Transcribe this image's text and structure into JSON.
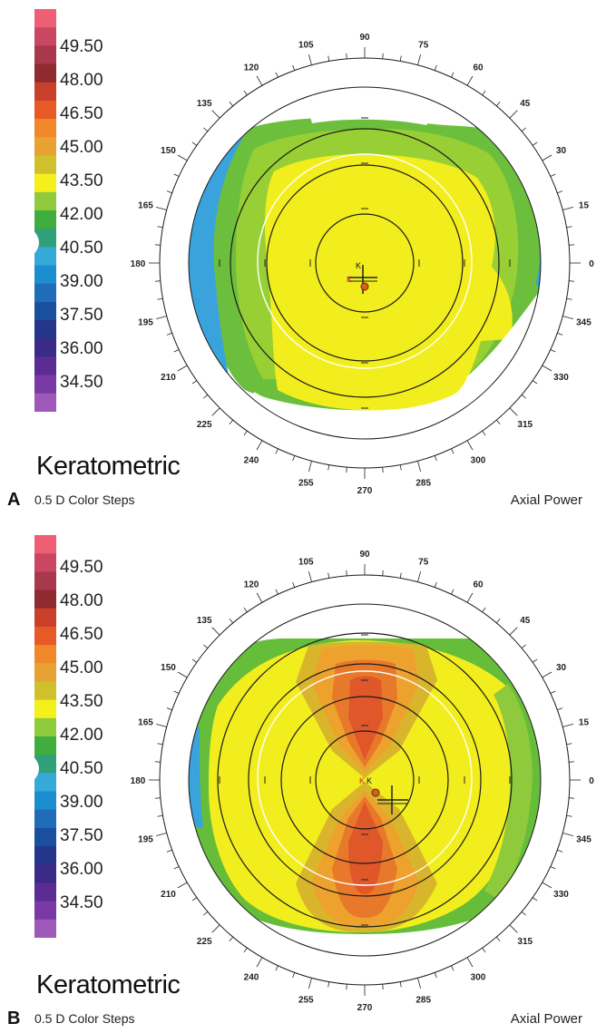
{
  "panels": [
    {
      "letter": "A",
      "title": "Keratometric",
      "color_steps": "0.5 D Color Steps",
      "map_type": "Axial Power",
      "scale_labels": [
        "49.50",
        "48.00",
        "46.50",
        "45.00",
        "43.50",
        "42.00",
        "40.50",
        "39.00",
        "37.50",
        "36.00",
        "34.50"
      ],
      "marker_position": 0.58
    },
    {
      "letter": "B",
      "title": "Keratometric",
      "color_steps": "0.5 D Color Steps",
      "map_type": "Axial Power",
      "scale_labels": [
        "49.50",
        "48.00",
        "46.50",
        "45.00",
        "43.50",
        "42.00",
        "40.50",
        "39.00",
        "37.50",
        "36.00",
        "34.50"
      ],
      "marker_position": 0.58
    }
  ],
  "axis_degrees": [
    "90",
    "75",
    "60",
    "45",
    "30",
    "15",
    "0",
    "345",
    "330",
    "315",
    "300",
    "285",
    "270",
    "255",
    "240",
    "225",
    "210",
    "195",
    "180",
    "165",
    "150",
    "135",
    "120",
    "105"
  ],
  "colors": {
    "scale": [
      "#ee5f76",
      "#c94763",
      "#a8384c",
      "#8f2a30",
      "#c8402a",
      "#e85a25",
      "#f0872a",
      "#e8a234",
      "#cfc12c",
      "#f4f01c",
      "#8fca3c",
      "#3fae3f",
      "#2fa07a",
      "#36a9d9",
      "#1b8ed1",
      "#1f6db9",
      "#1a4f9e",
      "#24358a",
      "#3b2a86",
      "#5b2d93",
      "#7a3aa6",
      "#9d58b8"
    ]
  }
}
